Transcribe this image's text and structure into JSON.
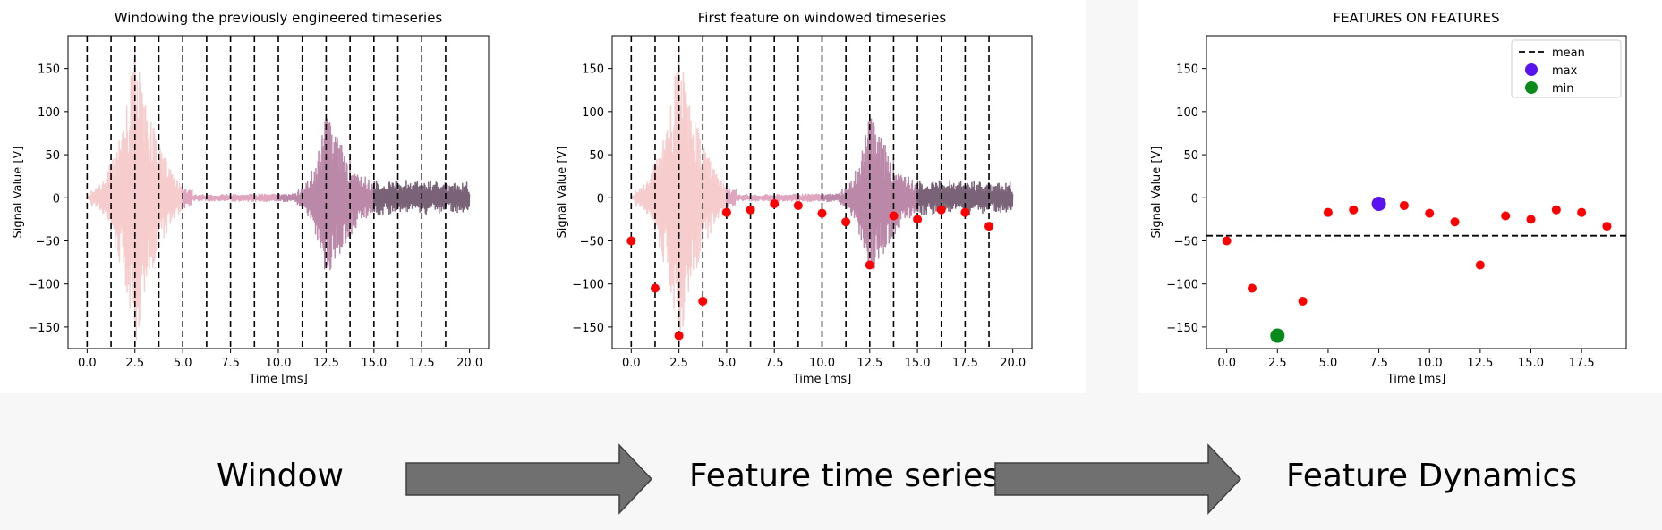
{
  "chart_data": [
    {
      "type": "line",
      "title": "Windowing the previously engineered timeseries",
      "xlabel": "Time [ms]",
      "ylabel": "Signal Value [V]",
      "xlim": [
        -1,
        21
      ],
      "ylim": [
        -175,
        188
      ],
      "xticks": [
        "0.0",
        "2.5",
        "5.0",
        "7.5",
        "10.0",
        "12.5",
        "15.0",
        "17.5",
        "20.0"
      ],
      "yticks": [
        "150",
        "100",
        "50",
        "0",
        "−50",
        "−100",
        "−150"
      ],
      "window_boundaries": [
        0,
        1.25,
        2.5,
        3.75,
        5.0,
        6.25,
        7.5,
        8.75,
        10.0,
        11.25,
        12.5,
        13.75,
        15.0,
        16.25,
        17.5,
        18.75
      ],
      "signal_bursts": [
        {
          "start": 0.2,
          "end": 5.5,
          "peak_time": 2.5,
          "peak": 170,
          "trough": -165
        },
        {
          "start": 11.0,
          "end": 16.0,
          "peak_time": 12.5,
          "peak": 93,
          "trough": -78
        }
      ],
      "signal_colors": [
        "#f7cccc",
        "#e0a6c0",
        "#bb88a8",
        "#7a6378"
      ]
    },
    {
      "type": "scatter",
      "title": "First feature on windowed timeseries",
      "xlabel": "Time [ms]",
      "ylabel": "Signal Value [V]",
      "xlim": [
        -1,
        21
      ],
      "ylim": [
        -175,
        188
      ],
      "xticks": [
        "0.0",
        "2.5",
        "5.0",
        "7.5",
        "10.0",
        "12.5",
        "15.0",
        "17.5",
        "20.0"
      ],
      "yticks": [
        "150",
        "100",
        "50",
        "0",
        "−50",
        "−100",
        "−150"
      ],
      "window_boundaries": [
        0,
        1.25,
        2.5,
        3.75,
        5.0,
        6.25,
        7.5,
        8.75,
        10.0,
        11.25,
        12.5,
        13.75,
        15.0,
        16.25,
        17.5,
        18.75
      ],
      "x": [
        0,
        1.25,
        2.5,
        3.75,
        5.0,
        6.25,
        7.5,
        8.75,
        10.0,
        11.25,
        12.5,
        13.75,
        15.0,
        16.25,
        17.5,
        18.75
      ],
      "y": [
        -50,
        -105,
        -160,
        -120,
        -17,
        -14,
        -7,
        -9,
        -18,
        -28,
        -78,
        -21,
        -25,
        -14,
        -17,
        -33
      ],
      "point_color": "#ff0000"
    },
    {
      "type": "scatter",
      "title": "FEATURES ON FEATURES",
      "xlabel": "Time [ms]",
      "ylabel": "Signal Value [V]",
      "xlim": [
        -1,
        19.7
      ],
      "ylim": [
        -175,
        188
      ],
      "xticks": [
        "0.0",
        "2.5",
        "5.0",
        "7.5",
        "10.0",
        "12.5",
        "15.0",
        "17.5"
      ],
      "yticks": [
        "150",
        "100",
        "50",
        "0",
        "−50",
        "−100",
        "−150"
      ],
      "x": [
        0,
        1.25,
        2.5,
        3.75,
        5.0,
        6.25,
        7.5,
        8.75,
        10.0,
        11.25,
        12.5,
        13.75,
        15.0,
        16.25,
        17.5,
        18.75
      ],
      "y": [
        -50,
        -105,
        -160,
        -120,
        -17,
        -14,
        -7,
        -9,
        -18,
        -28,
        -78,
        -21,
        -25,
        -14,
        -17,
        -33
      ],
      "mean": -44,
      "max": {
        "x": 7.5,
        "y": -7
      },
      "min": {
        "x": 2.5,
        "y": -160
      },
      "legend": [
        "mean",
        "max",
        "min"
      ],
      "legend_position": "top-right",
      "colors": {
        "points": "#ff0000",
        "max": "#5a12f0",
        "min": "#0a8a1a"
      }
    }
  ],
  "flow": {
    "labels": [
      "Window",
      "Feature time series",
      "Feature Dynamics"
    ],
    "arrow_color": "#707070"
  }
}
